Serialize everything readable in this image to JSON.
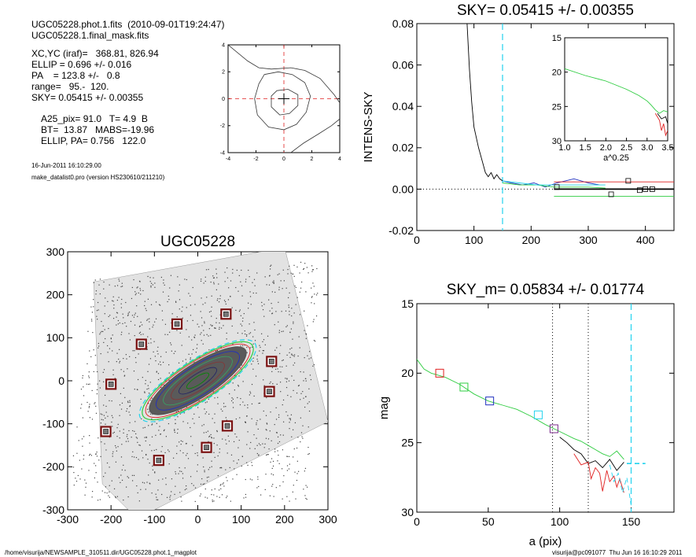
{
  "info": {
    "file_line": "UGC05228.phot.1.fits  (2010-09-01T19:24:47)",
    "mask_line": "UGC05228.1.final_mask.fits",
    "xcyc": "XC,YC (iraf)=   368.81, 826.94",
    "ellip": "ELLIP = 0.696 +/- 0.016",
    "pa": "PA    = 123.8 +/-   0.8",
    "range": "range=   95.-  120.",
    "sky": "SKY= 0.05415 +/- 0.00355",
    "a25": "A25_pix= 91.0   T= 4.9  B",
    "bt": "BT=  13.87   MABS=-19.96",
    "ellip_pa": "ELLIP, PA= 0.756   122.0",
    "date": "16-Jun-2011 16:10:29.00",
    "program": "make_datalist0.pro (version HS230610/211210)"
  },
  "footer": {
    "path": "/home/visurija/NEWSAMPLE_310511.dir/UGC05228.phot.1_magplot",
    "user": "visurija@pc091077  Thu Jun 16 16:10:29 2011"
  },
  "colors": {
    "cyan": "#22d3ee",
    "red": "#e02020",
    "green": "#2ecc40",
    "blue": "#2030c0",
    "purple": "#7a2a8a",
    "dark_red": "#7a1010"
  },
  "chart_data": [
    {
      "type": "line",
      "panel": "contour-inset",
      "xlim": [
        -4,
        4
      ],
      "ylim": [
        -4,
        4
      ],
      "xticks": [
        -4,
        -2,
        0,
        2,
        4
      ],
      "yticks": [
        -4,
        -2,
        0,
        2,
        4
      ],
      "contours": [
        {
          "name": "outer",
          "x": [
            -4,
            -2.6,
            -1.8,
            -0.9,
            0.5,
            1.5,
            2.6,
            3.6,
            4
          ],
          "y": [
            4,
            2.8,
            2.3,
            2.2,
            2.3,
            2.1,
            1.5,
            0.3,
            -0.3
          ]
        },
        {
          "name": "middle",
          "x": [
            -1.4,
            -0.4,
            0.6,
            1.5,
            1.9,
            1.6,
            0.9,
            0,
            -1.1,
            -1.9,
            -2.1,
            -1.8,
            -1.4
          ],
          "y": [
            1.8,
            2.0,
            1.8,
            1.2,
            0.2,
            -1.0,
            -1.9,
            -2.3,
            -2.1,
            -1.2,
            0,
            1.1,
            1.8
          ]
        },
        {
          "name": "inner",
          "x": [
            -0.5,
            0.3,
            1.0,
            1.0,
            0.4,
            -0.3,
            -0.9,
            -0.9,
            -0.5
          ],
          "y": [
            0.6,
            0.7,
            0.3,
            -0.5,
            -1.1,
            -1.2,
            -0.6,
            0.2,
            0.6
          ]
        },
        {
          "name": "bottom-right",
          "x": [
            0.5,
            1.4,
            2.5,
            3.4,
            4
          ],
          "y": [
            -4,
            -3.3,
            -2.6,
            -2.0,
            -1.5
          ]
        }
      ]
    },
    {
      "type": "line",
      "panel": "intens-sky",
      "title": "SKY= 0.05415 +/- 0.00355",
      "ylabel": "INTENS-SKY",
      "xlim": [
        0,
        450
      ],
      "ylim": [
        -0.02,
        0.08
      ],
      "xticks": [
        0,
        100,
        200,
        300,
        400
      ],
      "yticks": [
        -0.02,
        0.0,
        0.02,
        0.04,
        0.06,
        0.08
      ],
      "series": [
        {
          "color": "black",
          "x": [
            88,
            92,
            96,
            100,
            104,
            108,
            112,
            116,
            120,
            125,
            130,
            135,
            140,
            145,
            150
          ],
          "y": [
            0.08,
            0.058,
            0.042,
            0.03,
            0.025,
            0.02,
            0.016,
            0.012,
            0.008,
            0.006,
            0.008,
            0.005,
            0.007,
            0.005,
            0.004
          ]
        },
        {
          "color": "blue",
          "x": [
            150,
            165,
            185,
            205,
            225,
            245,
            260,
            275,
            300,
            320
          ],
          "y": [
            0.004,
            0.003,
            0.002,
            0.003,
            0.001,
            0.003,
            0.004,
            0.005,
            0.003,
            0.002
          ]
        },
        {
          "color": "green",
          "x": [
            150,
            180,
            210,
            240,
            270,
            300,
            330
          ],
          "y": [
            0.003,
            0.002,
            0.002,
            0.001,
            0.001,
            0.001,
            0.0005
          ]
        },
        {
          "color": "cyan",
          "x": [
            150,
            180,
            210,
            240,
            270,
            300,
            330
          ],
          "y": [
            0.004,
            0.003,
            0.002,
            0.002,
            0.002,
            0.002,
            0.002
          ]
        },
        {
          "color": "red",
          "x": [
            240,
            450
          ],
          "y": [
            0.0035,
            0.0035
          ]
        },
        {
          "color": "green",
          "x": [
            240,
            450
          ],
          "y": [
            -0.0035,
            -0.0035
          ]
        }
      ],
      "sky_points": {
        "x": [
          245,
          340,
          370,
          390,
          400,
          412
        ],
        "y": [
          0.001,
          -0.0025,
          0.004,
          -0.0005,
          0.0,
          0.0
        ]
      },
      "vline_x": 150
    },
    {
      "type": "line",
      "panel": "inset-profile",
      "xlabel": "a^0.25",
      "xlim": [
        1.0,
        3.5
      ],
      "ylim": [
        30,
        15
      ],
      "xticks": [
        1.0,
        1.5,
        2.0,
        2.5,
        3.0,
        3.5
      ],
      "yticks": [
        15,
        20,
        25,
        30
      ],
      "series": [
        {
          "color": "green",
          "x": [
            1.0,
            1.5,
            2.0,
            2.5,
            2.8,
            3.0,
            3.1,
            3.2,
            3.3,
            3.4,
            3.5
          ],
          "y": [
            19.5,
            20.5,
            21.3,
            22.5,
            23.4,
            24.2,
            24.8,
            25.5,
            26.0,
            25.6,
            25.8
          ]
        },
        {
          "color": "red",
          "x": [
            3.2,
            3.3,
            3.35,
            3.4,
            3.45,
            3.5
          ],
          "y": [
            26.0,
            27.0,
            28.5,
            27.5,
            29.2,
            28.5
          ]
        },
        {
          "color": "black",
          "x": [
            3.25,
            3.35,
            3.45,
            3.5
          ],
          "y": [
            26.0,
            26.8,
            26.5,
            27.5
          ]
        }
      ]
    },
    {
      "type": "scatter",
      "panel": "galaxy-image",
      "title": "UGC05228",
      "xlim": [
        -300,
        300
      ],
      "ylim": [
        -300,
        300
      ],
      "xticks": [
        -300,
        -200,
        -100,
        0,
        100,
        200,
        300
      ],
      "yticks": [
        -300,
        -200,
        -100,
        0,
        100,
        200,
        300
      ],
      "sky_boxes": {
        "x": [
          -48,
          65,
          -130,
          170,
          -200,
          165,
          68,
          -212,
          20,
          -90
        ],
        "y": [
          132,
          155,
          85,
          45,
          -8,
          -25,
          -105,
          -118,
          -155,
          -185
        ]
      },
      "ellipse": {
        "center": [
          0,
          0
        ],
        "semi_major": 150,
        "ellipticity": 0.7,
        "pa_deg": 33
      }
    },
    {
      "type": "line",
      "panel": "mag-profile",
      "title": "SKY_m=  0.05834 +/- 0.01774",
      "xlabel": "a (pix)",
      "ylabel": "mag",
      "xlim": [
        0,
        180
      ],
      "ylim": [
        30,
        15
      ],
      "xticks": [
        0,
        50,
        100,
        150
      ],
      "yticks": [
        15,
        20,
        25,
        30
      ],
      "series": [
        {
          "color": "green",
          "x": [
            0,
            5,
            10,
            20,
            30,
            40,
            50,
            60,
            70,
            80,
            90,
            100,
            110,
            115,
            120,
            125,
            130,
            135,
            140,
            145
          ],
          "y": [
            19.0,
            19.7,
            20.0,
            20.3,
            20.8,
            21.5,
            22.0,
            22.3,
            22.6,
            23.1,
            23.7,
            24.2,
            24.7,
            24.9,
            25.2,
            25.5,
            25.8,
            26.0,
            25.6,
            26.2
          ]
        },
        {
          "color": "black",
          "x": [
            100,
            105,
            110,
            115,
            120,
            125,
            130,
            135,
            140,
            145
          ],
          "y": [
            24.6,
            25.0,
            25.5,
            25.8,
            26.5,
            26.3,
            26.8,
            26.2,
            27.0,
            26.4
          ]
        },
        {
          "color": "red",
          "x": [
            110,
            115,
            120,
            122,
            125,
            128,
            130,
            133,
            135,
            138,
            140,
            142,
            145
          ],
          "y": [
            25.8,
            26.6,
            26.4,
            27.6,
            26.8,
            27.2,
            28.5,
            27.0,
            27.8,
            27.4,
            28.2,
            27.6,
            28.6
          ]
        },
        {
          "color": "cyan",
          "x": [
            135,
            138,
            141,
            144,
            147,
            150
          ],
          "y": [
            26.6,
            27.8,
            27.2,
            28.6,
            27.5,
            29.5
          ]
        },
        {
          "color": "cyan",
          "x": [
            147,
            160
          ],
          "y": [
            26.5,
            26.5
          ]
        }
      ],
      "square_markers": [
        {
          "x": 16,
          "y": 20.0,
          "color": "red"
        },
        {
          "x": 33,
          "y": 21.0,
          "color": "green"
        },
        {
          "x": 51,
          "y": 22.0,
          "color": "blue"
        },
        {
          "x": 85,
          "y": 23.0,
          "color": "cyan"
        },
        {
          "x": 96,
          "y": 24.0,
          "color": "purple"
        }
      ],
      "vlines_dotted": [
        95,
        120
      ],
      "vline_dashed": 150
    }
  ]
}
